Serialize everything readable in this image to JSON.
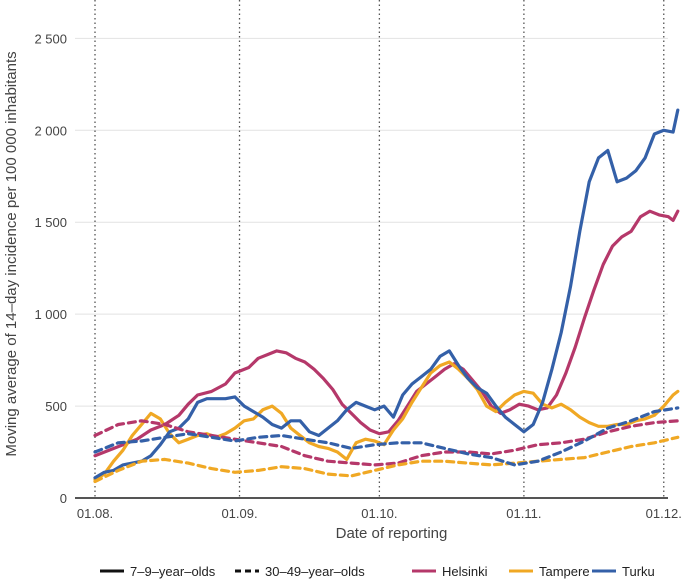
{
  "chart_data": {
    "type": "line",
    "xlabel": "Date of reporting",
    "ylabel": "Moving average of 14–day incidence per 100 000 inhabitants",
    "ylim": [
      0,
      2600
    ],
    "x_domain_days": [
      0,
      125
    ],
    "y_ticks": [
      {
        "value": 0,
        "label": "0"
      },
      {
        "value": 500,
        "label": "500"
      },
      {
        "value": 1000,
        "label": "1 000"
      },
      {
        "value": 1500,
        "label": "1 500"
      },
      {
        "value": 2000,
        "label": "2 000"
      },
      {
        "value": 2500,
        "label": "2 500"
      }
    ],
    "x_ticks": [
      {
        "day": 0,
        "label": "01.08."
      },
      {
        "day": 31,
        "label": "01.09."
      },
      {
        "day": 61,
        "label": "01.10."
      },
      {
        "day": 92,
        "label": "01.11."
      },
      {
        "day": 122,
        "label": "01.12."
      }
    ],
    "grid": true,
    "vertical_reference_lines": "dotted at each month start",
    "legend_position": "bottom",
    "legend": {
      "age_groups": [
        {
          "label": "7–9–year–olds",
          "dash": "solid"
        },
        {
          "label": "30–49–year–olds",
          "dash": "dashed"
        }
      ],
      "cities": [
        {
          "label": "Helsinki",
          "color": "#b5386a"
        },
        {
          "label": "Tampere",
          "color": "#f0a824"
        },
        {
          "label": "Turku",
          "color": "#3460a8"
        }
      ]
    },
    "series": [
      {
        "city": "Helsinki",
        "age_group": "7–9–year–olds",
        "color": "#b5386a",
        "dash": "solid",
        "points": [
          [
            0,
            230
          ],
          [
            3,
            260
          ],
          [
            6,
            290
          ],
          [
            9,
            320
          ],
          [
            12,
            370
          ],
          [
            15,
            400
          ],
          [
            18,
            450
          ],
          [
            20,
            510
          ],
          [
            22,
            560
          ],
          [
            25,
            580
          ],
          [
            28,
            620
          ],
          [
            30,
            680
          ],
          [
            33,
            710
          ],
          [
            35,
            760
          ],
          [
            37,
            780
          ],
          [
            39,
            800
          ],
          [
            41,
            790
          ],
          [
            43,
            760
          ],
          [
            45,
            740
          ],
          [
            47,
            700
          ],
          [
            49,
            650
          ],
          [
            51,
            590
          ],
          [
            53,
            510
          ],
          [
            55,
            460
          ],
          [
            57,
            410
          ],
          [
            59,
            370
          ],
          [
            61,
            350
          ],
          [
            63,
            360
          ],
          [
            65,
            420
          ],
          [
            67,
            500
          ],
          [
            69,
            580
          ],
          [
            71,
            620
          ],
          [
            73,
            660
          ],
          [
            75,
            700
          ],
          [
            77,
            730
          ],
          [
            79,
            700
          ],
          [
            81,
            640
          ],
          [
            83,
            580
          ],
          [
            85,
            500
          ],
          [
            87,
            460
          ],
          [
            89,
            480
          ],
          [
            91,
            510
          ],
          [
            93,
            500
          ],
          [
            95,
            480
          ],
          [
            97,
            490
          ],
          [
            99,
            560
          ],
          [
            101,
            680
          ],
          [
            103,
            820
          ],
          [
            105,
            980
          ],
          [
            107,
            1130
          ],
          [
            109,
            1270
          ],
          [
            111,
            1370
          ],
          [
            113,
            1420
          ],
          [
            115,
            1450
          ],
          [
            117,
            1530
          ],
          [
            119,
            1560
          ],
          [
            121,
            1540
          ],
          [
            123,
            1530
          ],
          [
            124,
            1510
          ],
          [
            125,
            1560
          ]
        ]
      },
      {
        "city": "Tampere",
        "age_group": "7–9–year–olds",
        "color": "#f0a824",
        "dash": "solid",
        "points": [
          [
            0,
            100
          ],
          [
            2,
            130
          ],
          [
            4,
            200
          ],
          [
            6,
            260
          ],
          [
            8,
            340
          ],
          [
            10,
            400
          ],
          [
            12,
            460
          ],
          [
            14,
            430
          ],
          [
            16,
            350
          ],
          [
            18,
            300
          ],
          [
            20,
            320
          ],
          [
            22,
            340
          ],
          [
            24,
            350
          ],
          [
            26,
            330
          ],
          [
            28,
            350
          ],
          [
            30,
            380
          ],
          [
            32,
            420
          ],
          [
            34,
            430
          ],
          [
            36,
            480
          ],
          [
            38,
            500
          ],
          [
            40,
            460
          ],
          [
            42,
            380
          ],
          [
            44,
            340
          ],
          [
            46,
            300
          ],
          [
            48,
            280
          ],
          [
            50,
            270
          ],
          [
            52,
            250
          ],
          [
            54,
            210
          ],
          [
            56,
            300
          ],
          [
            58,
            320
          ],
          [
            60,
            310
          ],
          [
            62,
            290
          ],
          [
            64,
            370
          ],
          [
            66,
            430
          ],
          [
            68,
            520
          ],
          [
            70,
            600
          ],
          [
            72,
            680
          ],
          [
            74,
            720
          ],
          [
            76,
            740
          ],
          [
            78,
            700
          ],
          [
            80,
            650
          ],
          [
            82,
            590
          ],
          [
            84,
            500
          ],
          [
            86,
            470
          ],
          [
            88,
            520
          ],
          [
            90,
            560
          ],
          [
            92,
            580
          ],
          [
            94,
            570
          ],
          [
            96,
            510
          ],
          [
            98,
            490
          ],
          [
            100,
            510
          ],
          [
            102,
            480
          ],
          [
            104,
            440
          ],
          [
            106,
            410
          ],
          [
            108,
            390
          ],
          [
            110,
            390
          ],
          [
            112,
            400
          ],
          [
            114,
            400
          ],
          [
            116,
            420
          ],
          [
            118,
            430
          ],
          [
            120,
            450
          ],
          [
            122,
            500
          ],
          [
            124,
            560
          ],
          [
            125,
            580
          ]
        ]
      },
      {
        "city": "Turku",
        "age_group": "7–9–year–olds",
        "color": "#3460a8",
        "dash": "solid",
        "points": [
          [
            0,
            110
          ],
          [
            2,
            140
          ],
          [
            4,
            150
          ],
          [
            6,
            180
          ],
          [
            8,
            190
          ],
          [
            10,
            200
          ],
          [
            12,
            230
          ],
          [
            14,
            290
          ],
          [
            16,
            360
          ],
          [
            18,
            380
          ],
          [
            20,
            430
          ],
          [
            22,
            520
          ],
          [
            24,
            540
          ],
          [
            26,
            540
          ],
          [
            28,
            540
          ],
          [
            30,
            550
          ],
          [
            32,
            500
          ],
          [
            34,
            470
          ],
          [
            36,
            440
          ],
          [
            38,
            400
          ],
          [
            40,
            380
          ],
          [
            42,
            420
          ],
          [
            44,
            420
          ],
          [
            46,
            360
          ],
          [
            48,
            340
          ],
          [
            50,
            380
          ],
          [
            52,
            420
          ],
          [
            54,
            480
          ],
          [
            56,
            520
          ],
          [
            58,
            500
          ],
          [
            60,
            480
          ],
          [
            62,
            500
          ],
          [
            64,
            440
          ],
          [
            66,
            560
          ],
          [
            68,
            620
          ],
          [
            70,
            660
          ],
          [
            72,
            700
          ],
          [
            74,
            770
          ],
          [
            76,
            800
          ],
          [
            78,
            720
          ],
          [
            80,
            650
          ],
          [
            82,
            600
          ],
          [
            84,
            570
          ],
          [
            86,
            500
          ],
          [
            88,
            440
          ],
          [
            90,
            400
          ],
          [
            92,
            360
          ],
          [
            94,
            400
          ],
          [
            96,
            520
          ],
          [
            98,
            700
          ],
          [
            100,
            900
          ],
          [
            102,
            1150
          ],
          [
            104,
            1450
          ],
          [
            106,
            1720
          ],
          [
            108,
            1850
          ],
          [
            110,
            1890
          ],
          [
            112,
            1720
          ],
          [
            114,
            1740
          ],
          [
            116,
            1780
          ],
          [
            118,
            1850
          ],
          [
            120,
            1980
          ],
          [
            122,
            2000
          ],
          [
            124,
            1990
          ],
          [
            125,
            2110
          ]
        ]
      },
      {
        "city": "Helsinki",
        "age_group": "30–49–year–olds",
        "color": "#b5386a",
        "dash": "dashed",
        "points": [
          [
            0,
            340
          ],
          [
            5,
            400
          ],
          [
            10,
            420
          ],
          [
            15,
            400
          ],
          [
            20,
            360
          ],
          [
            25,
            340
          ],
          [
            30,
            320
          ],
          [
            35,
            300
          ],
          [
            40,
            280
          ],
          [
            45,
            230
          ],
          [
            50,
            200
          ],
          [
            55,
            190
          ],
          [
            60,
            180
          ],
          [
            65,
            190
          ],
          [
            70,
            230
          ],
          [
            75,
            250
          ],
          [
            80,
            250
          ],
          [
            85,
            240
          ],
          [
            90,
            260
          ],
          [
            95,
            290
          ],
          [
            100,
            300
          ],
          [
            105,
            320
          ],
          [
            110,
            360
          ],
          [
            115,
            390
          ],
          [
            120,
            410
          ],
          [
            125,
            420
          ]
        ]
      },
      {
        "city": "Tampere",
        "age_group": "30–49–year–olds",
        "color": "#f0a824",
        "dash": "dashed",
        "points": [
          [
            0,
            90
          ],
          [
            5,
            150
          ],
          [
            10,
            200
          ],
          [
            15,
            210
          ],
          [
            20,
            190
          ],
          [
            25,
            160
          ],
          [
            30,
            140
          ],
          [
            35,
            150
          ],
          [
            40,
            170
          ],
          [
            45,
            160
          ],
          [
            50,
            130
          ],
          [
            55,
            120
          ],
          [
            60,
            150
          ],
          [
            65,
            180
          ],
          [
            70,
            200
          ],
          [
            75,
            200
          ],
          [
            80,
            190
          ],
          [
            85,
            180
          ],
          [
            90,
            190
          ],
          [
            95,
            200
          ],
          [
            100,
            210
          ],
          [
            105,
            220
          ],
          [
            110,
            250
          ],
          [
            115,
            280
          ],
          [
            120,
            300
          ],
          [
            125,
            330
          ]
        ]
      },
      {
        "city": "Turku",
        "age_group": "30–49–year–olds",
        "color": "#3460a8",
        "dash": "dashed",
        "points": [
          [
            0,
            250
          ],
          [
            5,
            300
          ],
          [
            10,
            310
          ],
          [
            15,
            330
          ],
          [
            20,
            350
          ],
          [
            25,
            330
          ],
          [
            30,
            310
          ],
          [
            35,
            330
          ],
          [
            40,
            340
          ],
          [
            45,
            320
          ],
          [
            50,
            300
          ],
          [
            55,
            270
          ],
          [
            60,
            290
          ],
          [
            65,
            300
          ],
          [
            70,
            300
          ],
          [
            75,
            270
          ],
          [
            80,
            240
          ],
          [
            85,
            220
          ],
          [
            90,
            180
          ],
          [
            95,
            200
          ],
          [
            100,
            250
          ],
          [
            105,
            310
          ],
          [
            110,
            380
          ],
          [
            115,
            420
          ],
          [
            120,
            470
          ],
          [
            125,
            490
          ]
        ]
      }
    ]
  }
}
